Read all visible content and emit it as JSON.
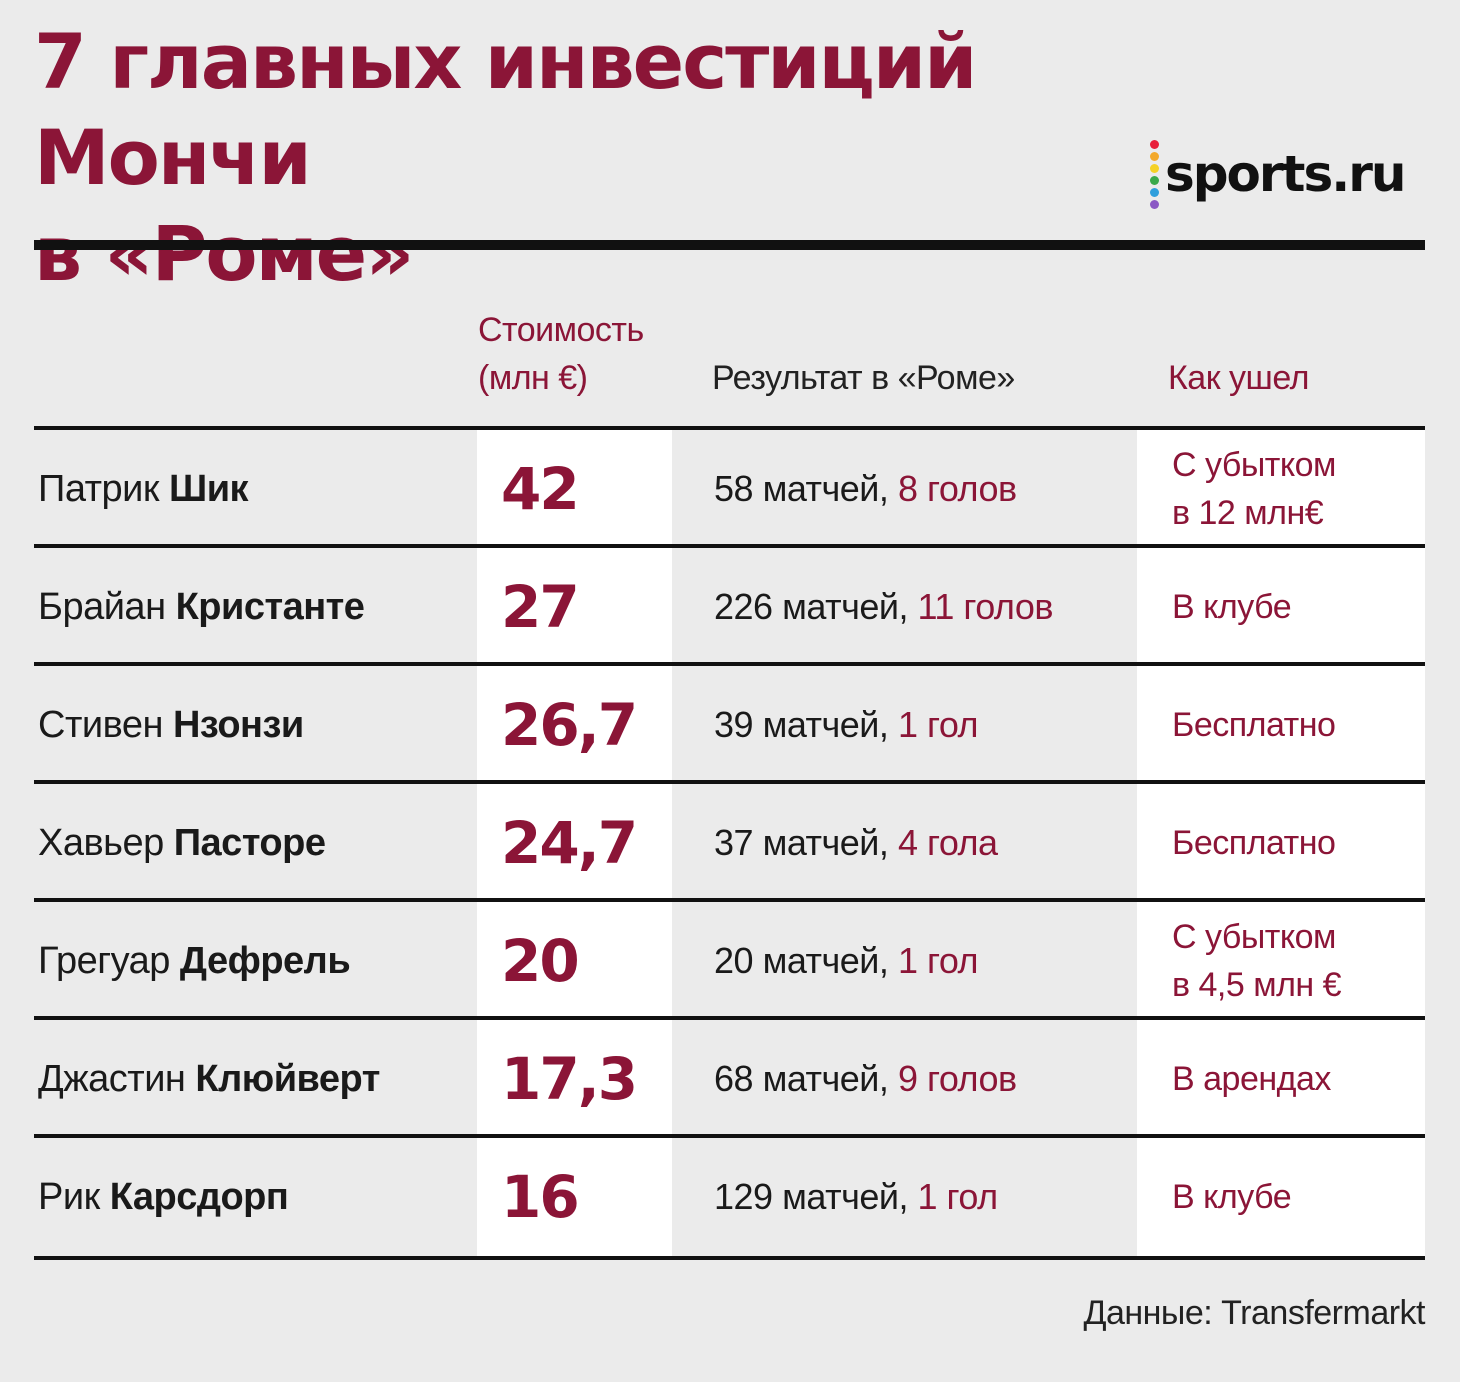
{
  "title": {
    "line1": "7 главных инвестиций Мончи",
    "line2": "в «Роме»"
  },
  "logo": {
    "text": "sports.ru",
    "dot_colors": [
      "#e8203a",
      "#f3a92b",
      "#f5d226",
      "#3aa94a",
      "#2f9fdc",
      "#8b58c4"
    ]
  },
  "headers": {
    "cost_line1": "Стоимость",
    "cost_line2": "(млн €)",
    "result": "Результат в «Роме»",
    "exit": "Как ушел"
  },
  "rows": [
    {
      "first": "Патрик",
      "last": "Шик",
      "cost": "42",
      "matches": "58",
      "matches_word": "матчей,",
      "goals": "8",
      "goals_word": "голов",
      "exit1": "С убытком",
      "exit2": "в 12 млн€"
    },
    {
      "first": "Брайан",
      "last": "Кристанте",
      "cost": "27",
      "matches": "226",
      "matches_word": "матчей,",
      "goals": "11",
      "goals_word": "голов",
      "exit1": "В клубе",
      "exit2": ""
    },
    {
      "first": "Стивен",
      "last": "Нзонзи",
      "cost": "26,7",
      "matches": "39",
      "matches_word": "матчей,",
      "goals": "1",
      "goals_word": "гол",
      "exit1": "Бесплатно",
      "exit2": ""
    },
    {
      "first": "Хавьер",
      "last": "Пасторе",
      "cost": "24,7",
      "matches": "37",
      "matches_word": "матчей,",
      "goals": "4",
      "goals_word": "гола",
      "exit1": "Бесплатно",
      "exit2": ""
    },
    {
      "first": "Грегуар",
      "last": "Дефрель",
      "cost": "20",
      "matches": "20",
      "matches_word": "матчей,",
      "goals": "1",
      "goals_word": "гол",
      "exit1": "С убытком",
      "exit2": "в 4,5 млн €"
    },
    {
      "first": "Джастин",
      "last": "Клюйверт",
      "cost": "17,3",
      "matches": "68",
      "matches_word": "матчей,",
      "goals": "9",
      "goals_word": "голов",
      "exit1": "В арендах",
      "exit2": ""
    },
    {
      "first": "Рик",
      "last": "Карсдорп",
      "cost": "16",
      "matches": "129",
      "matches_word": "матчей,",
      "goals": "1",
      "goals_word": "гол",
      "exit1": "В клубе",
      "exit2": ""
    }
  ],
  "source": "Данные: Transfermarkt"
}
